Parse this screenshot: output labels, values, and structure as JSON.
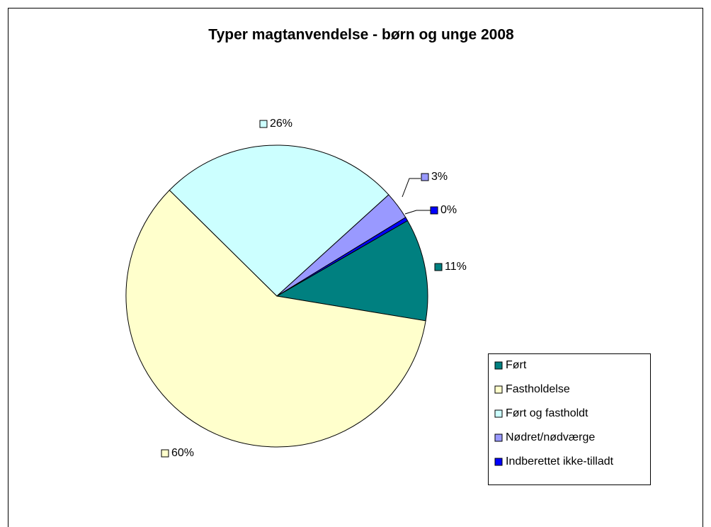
{
  "chart_data": {
    "type": "pie",
    "title": "Typer magtanvendelse - børn og unge 2008",
    "categories": [
      "Ført",
      "Fastholdelse",
      "Ført og fastholdt",
      "Nødret/nødværge",
      "Indberettet ikke-tilladt"
    ],
    "values": [
      11,
      60,
      26,
      3,
      0.4
    ],
    "value_labels": [
      "11%",
      "60%",
      "26%",
      "3%",
      "0%"
    ],
    "colors": [
      "#008080",
      "#FFFFCC",
      "#CCFFFF",
      "#9999FF",
      "#0000FF"
    ],
    "legend": "right"
  }
}
